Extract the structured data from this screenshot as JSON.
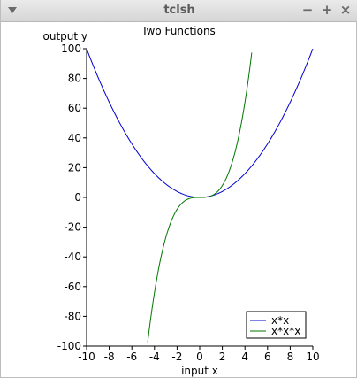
{
  "window": {
    "title": "tclsh",
    "minimize_glyph": "−",
    "maximize_glyph": "+",
    "close_glyph": "×"
  },
  "chart_data": {
    "type": "line",
    "title": "Two Functions",
    "xlabel": "input x",
    "ylabel": "output y",
    "xlim": [
      -10,
      10
    ],
    "ylim": [
      -100,
      100
    ],
    "xticks": [
      -10,
      -8,
      -6,
      -4,
      -2,
      0,
      2,
      4,
      6,
      8,
      10
    ],
    "yticks": [
      -100,
      -80,
      -60,
      -40,
      -20,
      0,
      20,
      40,
      60,
      80,
      100
    ],
    "grid": false,
    "legend": "bottom-right",
    "series": [
      {
        "name": "x*x",
        "color": "#0000cc",
        "expr": "x*x",
        "x": [
          -10,
          -9,
          -8,
          -7,
          -6,
          -5,
          -4,
          -3,
          -2,
          -1,
          0,
          1,
          2,
          3,
          4,
          5,
          6,
          7,
          8,
          9,
          10
        ],
        "y": [
          100,
          81,
          64,
          49,
          36,
          25,
          16,
          9,
          4,
          1,
          0,
          1,
          4,
          9,
          16,
          25,
          36,
          49,
          64,
          81,
          100
        ]
      },
      {
        "name": "x*x*x",
        "color": "#007700",
        "expr": "x*x*x",
        "x": [
          -4.6,
          -4,
          -3,
          -2,
          -1,
          0,
          1,
          2,
          3,
          4,
          4.6
        ],
        "y": [
          -97.3,
          -64,
          -27,
          -8,
          -1,
          0,
          1,
          8,
          27,
          64,
          97.3
        ]
      }
    ]
  }
}
